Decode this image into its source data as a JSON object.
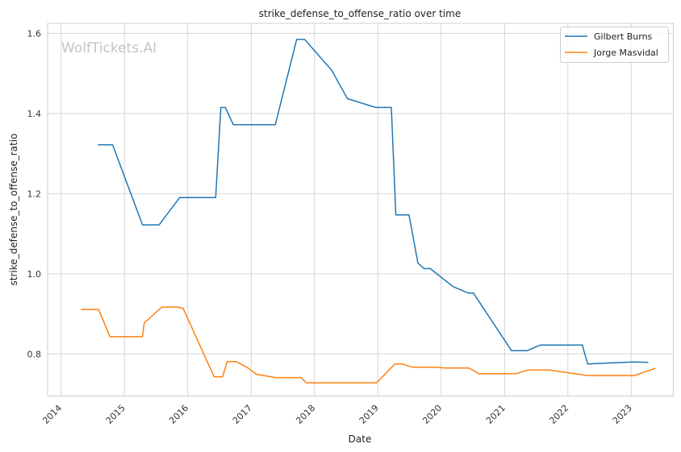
{
  "chart_data": {
    "type": "line",
    "title": "strike_defense_to_offense_ratio over time",
    "xlabel": "Date",
    "ylabel": "strike_defense_to_offense_ratio",
    "watermark": "WolfTickets.AI",
    "xlim": [
      "2013-10-15",
      "2023-09-01"
    ],
    "ylim": [
      0.695,
      1.625
    ],
    "xticks": [
      "2014",
      "2015",
      "2016",
      "2017",
      "2018",
      "2019",
      "2020",
      "2021",
      "2022",
      "2023"
    ],
    "yticks": [
      "0.8",
      "1.0",
      "1.2",
      "1.4",
      "1.6"
    ],
    "grid": true,
    "legend_position": "top-right",
    "series": [
      {
        "name": "Gilbert Burns",
        "color": "#1f77b4",
        "points": [
          [
            "2014-08-01",
            1.322
          ],
          [
            "2014-10-25",
            1.322
          ],
          [
            "2015-04-15",
            1.122
          ],
          [
            "2015-07-20",
            1.122
          ],
          [
            "2015-11-15",
            1.19
          ],
          [
            "2016-06-10",
            1.19
          ],
          [
            "2016-07-10",
            1.415
          ],
          [
            "2016-08-05",
            1.415
          ],
          [
            "2016-09-20",
            1.372
          ],
          [
            "2017-05-20",
            1.372
          ],
          [
            "2017-09-20",
            1.585
          ],
          [
            "2017-11-05",
            1.585
          ],
          [
            "2018-04-10",
            1.508
          ],
          [
            "2018-07-10",
            1.437
          ],
          [
            "2018-12-20",
            1.415
          ],
          [
            "2019-03-20",
            1.415
          ],
          [
            "2019-04-15",
            1.147
          ],
          [
            "2019-06-30",
            1.147
          ],
          [
            "2019-08-20",
            1.027
          ],
          [
            "2019-09-25",
            1.013
          ],
          [
            "2019-10-30",
            1.013
          ],
          [
            "2020-03-10",
            0.968
          ],
          [
            "2020-06-05",
            0.952
          ],
          [
            "2020-07-05",
            0.952
          ],
          [
            "2021-02-10",
            0.808
          ],
          [
            "2021-05-10",
            0.808
          ],
          [
            "2021-07-25",
            0.822
          ],
          [
            "2022-03-25",
            0.822
          ],
          [
            "2022-04-25",
            0.775
          ],
          [
            "2023-01-15",
            0.78
          ],
          [
            "2023-04-10",
            0.779
          ]
        ]
      },
      {
        "name": "Jorge Masvidal",
        "color": "#ff7f0e",
        "points": [
          [
            "2014-04-25",
            0.911
          ],
          [
            "2014-08-05",
            0.911
          ],
          [
            "2014-10-10",
            0.843
          ],
          [
            "2015-04-15",
            0.843
          ],
          [
            "2015-04-25",
            0.877
          ],
          [
            "2015-08-05",
            0.917
          ],
          [
            "2015-11-05",
            0.917
          ],
          [
            "2015-12-05",
            0.914
          ],
          [
            "2016-06-01",
            0.743
          ],
          [
            "2016-07-20",
            0.743
          ],
          [
            "2016-08-15",
            0.781
          ],
          [
            "2016-10-05",
            0.781
          ],
          [
            "2016-12-10",
            0.766
          ],
          [
            "2017-02-01",
            0.749
          ],
          [
            "2017-05-20",
            0.741
          ],
          [
            "2017-10-15",
            0.741
          ],
          [
            "2017-11-15",
            0.728
          ],
          [
            "2018-12-25",
            0.728
          ],
          [
            "2019-04-10",
            0.775
          ],
          [
            "2019-05-20",
            0.775
          ],
          [
            "2019-07-20",
            0.767
          ],
          [
            "2019-11-25",
            0.767
          ],
          [
            "2020-01-25",
            0.765
          ],
          [
            "2020-06-10",
            0.765
          ],
          [
            "2020-08-05",
            0.751
          ],
          [
            "2021-03-10",
            0.751
          ],
          [
            "2021-05-15",
            0.76
          ],
          [
            "2021-09-15",
            0.76
          ],
          [
            "2022-04-25",
            0.746
          ],
          [
            "2023-01-20",
            0.746
          ],
          [
            "2023-05-20",
            0.764
          ]
        ]
      }
    ]
  }
}
